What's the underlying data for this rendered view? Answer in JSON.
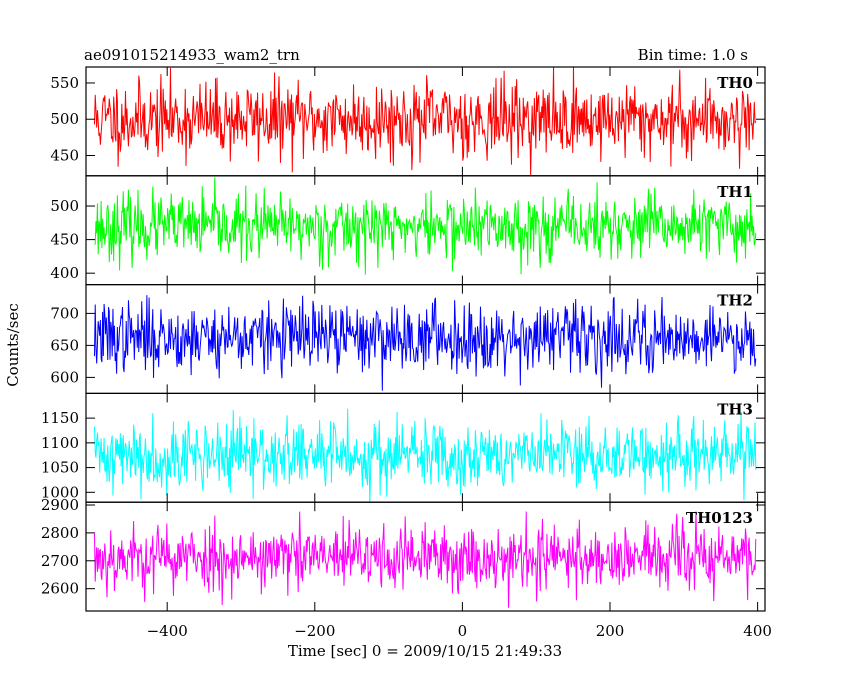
{
  "header": {
    "title": "ae091015214933_wam2_trn",
    "bin_time": "Bin time: 1.0 s"
  },
  "chart_data": {
    "type": "line",
    "xlabel": "Time [sec] 0 = 2009/10/15 21:49:33",
    "ylabel": "Counts/sec",
    "xlim": [
      -510,
      410
    ],
    "x_start": -498.5,
    "x_step": 1,
    "n_points": 897,
    "x_ticks": [
      -400,
      -200,
      0,
      200,
      400
    ],
    "grid": false,
    "series": [
      {
        "name": "TH0",
        "color": "#ff0000",
        "mean": 500,
        "noise": 26,
        "ylim": [
          422,
          572
        ],
        "y_ticks": [
          450,
          500,
          550
        ],
        "seed": 11
      },
      {
        "name": "TH1",
        "color": "#00ff00",
        "mean": 469,
        "noise": 24,
        "ylim": [
          383,
          545
        ],
        "y_ticks": [
          400,
          450,
          500
        ],
        "seed": 23
      },
      {
        "name": "TH2",
        "color": "#0000ff",
        "mean": 663,
        "noise": 27,
        "ylim": [
          575,
          745
        ],
        "y_ticks": [
          600,
          650,
          700
        ],
        "seed": 37
      },
      {
        "name": "TH3",
        "color": "#00ffff",
        "mean": 1075,
        "noise": 35,
        "ylim": [
          980,
          1200
        ],
        "y_ticks": [
          1000,
          1050,
          1100,
          1150
        ],
        "seed": 41
      },
      {
        "name": "TH0123",
        "color": "#ff00ff",
        "mean": 2712,
        "noise": 60,
        "ylim": [
          2520,
          2910
        ],
        "y_ticks": [
          2600,
          2700,
          2800,
          2900
        ],
        "seed": 53
      }
    ]
  }
}
